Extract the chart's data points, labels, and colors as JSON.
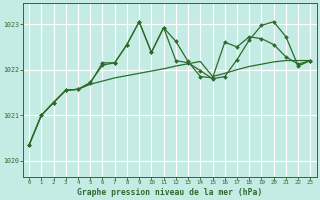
{
  "title": "Graphe pression niveau de la mer (hPa)",
  "background_color": "#c5ece4",
  "plot_bg_color": "#c5ece4",
  "grid_color": "#ffffff",
  "line_color": "#2d6b2d",
  "xlim": [
    -0.5,
    23.5
  ],
  "ylim": [
    1019.65,
    1023.45
  ],
  "yticks": [
    1020,
    1021,
    1022,
    1023
  ],
  "xticks": [
    0,
    1,
    2,
    3,
    4,
    5,
    6,
    7,
    8,
    9,
    10,
    11,
    12,
    13,
    14,
    15,
    16,
    17,
    18,
    19,
    20,
    21,
    22,
    23
  ],
  "series1_x": [
    0,
    1,
    2,
    3,
    4,
    5,
    6,
    7,
    8,
    9,
    10,
    11,
    12,
    13,
    14,
    15,
    16,
    17,
    18,
    19,
    20,
    21,
    22,
    23
  ],
  "series1_y": [
    1020.35,
    1021.0,
    1021.28,
    1021.55,
    1021.57,
    1021.68,
    1021.75,
    1021.82,
    1021.87,
    1021.92,
    1021.97,
    1022.02,
    1022.08,
    1022.13,
    1022.18,
    1021.85,
    1021.92,
    1022.0,
    1022.07,
    1022.12,
    1022.17,
    1022.2,
    1022.2,
    1022.2
  ],
  "series2_x": [
    0,
    1,
    2,
    3,
    4,
    5,
    6,
    7,
    8,
    9,
    10,
    11,
    12,
    13,
    14,
    15,
    16,
    17,
    18,
    19,
    20,
    21,
    22,
    23
  ],
  "series2_y": [
    1020.35,
    1021.0,
    1021.28,
    1021.55,
    1021.57,
    1021.7,
    1022.15,
    1022.15,
    1022.55,
    1023.05,
    1022.38,
    1022.92,
    1022.2,
    1022.15,
    1021.98,
    1021.8,
    1021.85,
    1022.22,
    1022.65,
    1022.97,
    1023.05,
    1022.72,
    1022.08,
    1022.2
  ],
  "series3_x": [
    0,
    1,
    2,
    3,
    4,
    5,
    6,
    7,
    8,
    9,
    10,
    11,
    12,
    13,
    14,
    15,
    16,
    17,
    18,
    19,
    20,
    21,
    22,
    23
  ],
  "series3_y": [
    1020.35,
    1021.0,
    1021.28,
    1021.55,
    1021.57,
    1021.72,
    1022.1,
    1022.15,
    1022.55,
    1023.05,
    1022.38,
    1022.92,
    1022.62,
    1022.18,
    1021.85,
    1021.82,
    1022.6,
    1022.5,
    1022.72,
    1022.68,
    1022.55,
    1022.28,
    1022.12,
    1022.2
  ]
}
